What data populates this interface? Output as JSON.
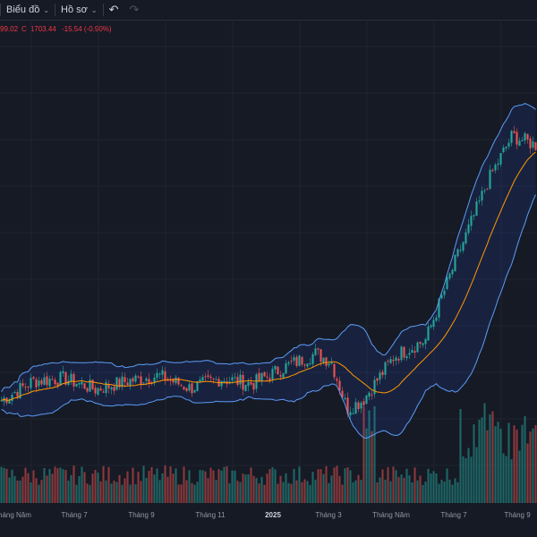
{
  "toolbar": {
    "chart_label": "Biểu đồ",
    "profile_label": "Hồ sơ"
  },
  "legend": {
    "close_prefix": "C",
    "value_partial": "99.02",
    "close": "1703.44",
    "change": "-15.54 (-0.90%)"
  },
  "colors": {
    "background": "#161a25",
    "up": "#26a69a",
    "down": "#ef5350",
    "band": "#5b9cf6",
    "ma": "#ff9800"
  },
  "chart_data": {
    "type": "candlestick",
    "indicators": [
      "Bollinger Bands",
      "volume"
    ],
    "x_tick_labels": [
      "Tháng Năm",
      "Tháng 7",
      "Tháng 9",
      "Tháng 11",
      "2025",
      "Tháng 3",
      "Tháng Năm",
      "Tháng 7",
      "Tháng 9"
    ],
    "price_path": [
      {
        "week": 0,
        "close": 1240
      },
      {
        "week": 4,
        "close": 1275
      },
      {
        "week": 8,
        "close": 1280
      },
      {
        "week": 12,
        "close": 1260
      },
      {
        "week": 16,
        "close": 1275
      },
      {
        "week": 20,
        "close": 1285
      },
      {
        "week": 24,
        "close": 1262
      },
      {
        "week": 28,
        "close": 1280
      },
      {
        "week": 32,
        "close": 1270
      },
      {
        "week": 36,
        "close": 1300
      },
      {
        "week": 40,
        "close": 1325
      },
      {
        "week": 42,
        "close": 1310
      },
      {
        "week": 44,
        "close": 1225
      },
      {
        "week": 46,
        "close": 1240
      },
      {
        "week": 50,
        "close": 1320
      },
      {
        "week": 54,
        "close": 1350
      },
      {
        "week": 58,
        "close": 1500
      },
      {
        "week": 62,
        "close": 1640
      },
      {
        "week": 65,
        "close": 1720
      },
      {
        "week": 68,
        "close": 1703
      }
    ],
    "grid": true
  }
}
